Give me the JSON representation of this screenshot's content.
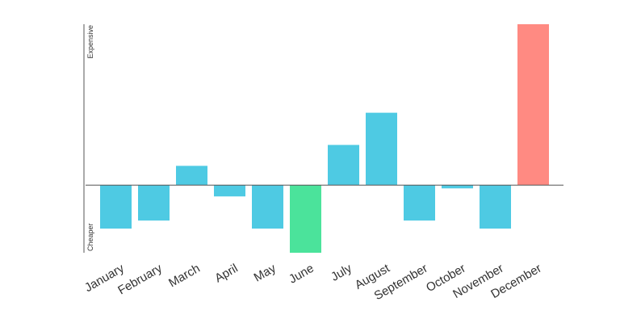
{
  "chart_data": {
    "type": "bar",
    "categories": [
      "January",
      "February",
      "March",
      "April",
      "May",
      "June",
      "July",
      "August",
      "September",
      "October",
      "November",
      "December"
    ],
    "values": [
      -27,
      -22,
      12,
      -7,
      -27,
      -42,
      25,
      45,
      -22,
      -2,
      -27,
      100
    ],
    "colors": [
      "#4ecae3",
      "#4ecae3",
      "#4ecae3",
      "#4ecae3",
      "#4ecae3",
      "#4be39b",
      "#4ecae3",
      "#4ecae3",
      "#4ecae3",
      "#4ecae3",
      "#4ecae3",
      "#ff8a82"
    ],
    "ylim": [
      -42,
      100
    ],
    "y_top_label": "Expensive",
    "y_bottom_label": "Cheaper",
    "grid": false,
    "legend": "none"
  }
}
